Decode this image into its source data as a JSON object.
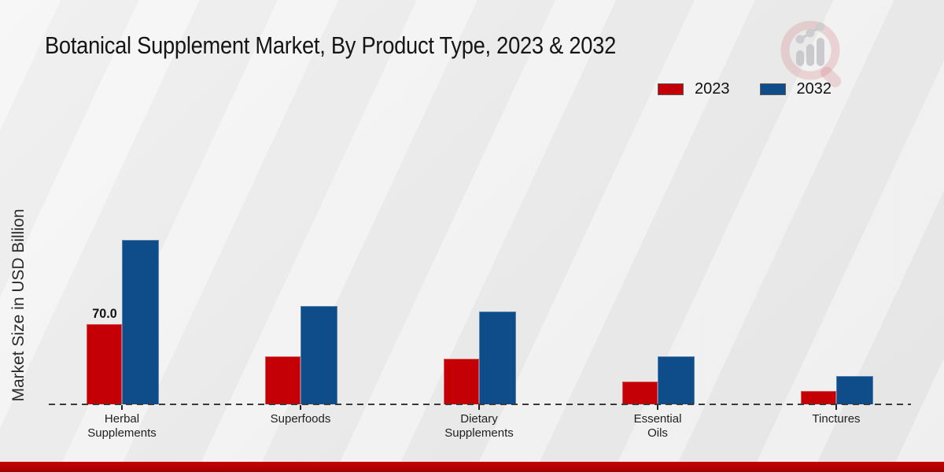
{
  "meta": {
    "title": "Botanical Supplement Market, By Product Type, 2023 & 2032"
  },
  "colors": {
    "series_2023": "#c40006",
    "series_2032": "#0e4c8a",
    "footer_strip": "#b40004",
    "baseline": "#3a3a3a",
    "background": "#ededed"
  },
  "logo": {
    "name": "magnifier-bar-chart-logo"
  },
  "chart_data": {
    "type": "bar",
    "title": "Botanical Supplement Market, By Product Type, 2023 & 2032",
    "xlabel": "",
    "ylabel": "Market Size in USD Billion",
    "categories": [
      "Herbal Supplements",
      "Superfoods",
      "Dietary Supplements",
      "Essential Oils",
      "Tinctures"
    ],
    "category_lines": [
      [
        "Herbal",
        "Supplements"
      ],
      [
        "Superfoods"
      ],
      [
        "Dietary",
        "Supplements"
      ],
      [
        "Essential",
        "Oils"
      ],
      [
        "Tinctures"
      ]
    ],
    "series": [
      {
        "name": "2023",
        "color": "#c40006",
        "values": [
          70.0,
          42,
          40,
          20,
          12
        ],
        "bar_labels": [
          "70.0",
          "",
          "",
          "",
          ""
        ]
      },
      {
        "name": "2032",
        "color": "#0e4c8a",
        "values": [
          143.5,
          86,
          81,
          42,
          25
        ],
        "bar_labels": [
          "",
          "",
          "",
          "",
          ""
        ]
      }
    ],
    "unit": "USD Billion",
    "ylim": [
      0,
      160
    ],
    "grid": false,
    "y_axis_ticks_visible": false,
    "baseline_style": "dashed",
    "legend_position": "top-right"
  }
}
